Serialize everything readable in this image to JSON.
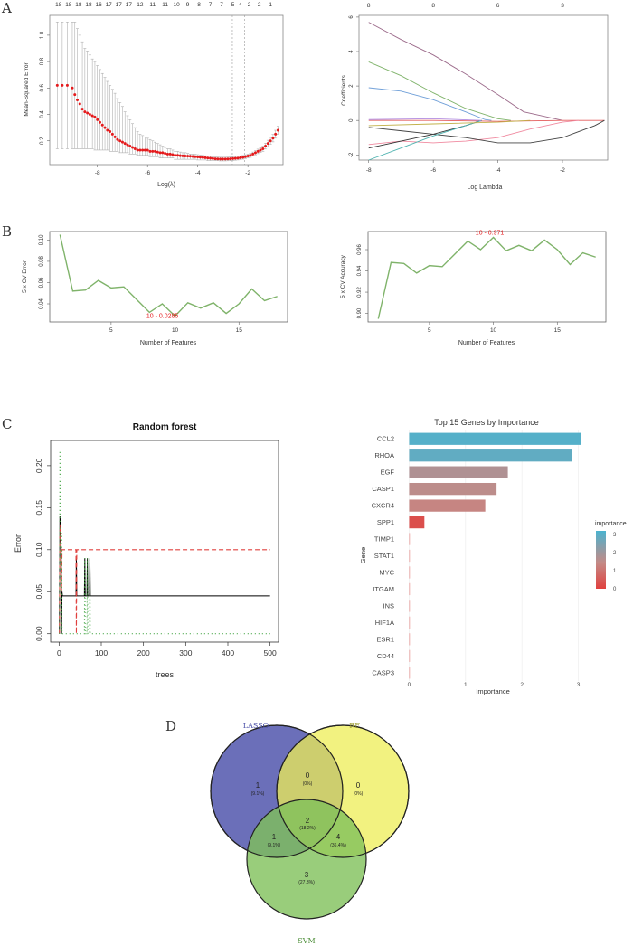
{
  "panel_labels": [
    "A",
    "B",
    "C",
    "D"
  ],
  "colors": {
    "lasso_red": "#e41a1c",
    "cv_green": "#7fb36a",
    "rf_red": "#e0413f",
    "rf_green": "#3fa33f",
    "venn_lasso": "#5b5fb1",
    "venn_rf": "#eeee55",
    "venn_svm": "#7fc05a",
    "imp_high": "#4bb3cf",
    "imp_mid": "#c48a86",
    "imp_low": "#e0413f"
  },
  "chart_data": [
    {
      "id": "lasso_cv",
      "type": "scatter",
      "xlabel": "Log(λ)",
      "ylabel": "Mean-Squared Error",
      "xlim": [
        -9.9,
        -0.6
      ],
      "ylim": [
        0.02,
        1.15
      ],
      "xticks": [
        -8,
        -6,
        -4,
        -2
      ],
      "yticks": [
        0.2,
        0.4,
        0.6,
        0.8,
        1.0
      ],
      "top_axis": {
        "positions": [
          -9.55,
          -9.15,
          -8.75,
          -8.35,
          -7.95,
          -7.55,
          -7.15,
          -6.75,
          -6.3,
          -5.8,
          -5.3,
          -4.85,
          -4.4,
          -3.95,
          -3.5,
          -3.05,
          -2.6,
          -2.3,
          -1.95,
          -1.55,
          -1.1
        ],
        "labels": [
          "18",
          "18",
          "18",
          "18",
          "16",
          "17",
          "17",
          "17",
          "12",
          "11",
          "11",
          "10",
          "9",
          "8",
          "7",
          "7",
          "5",
          "4",
          "2",
          "2",
          "1"
        ]
      },
      "vlines": [
        -2.62,
        -2.13
      ],
      "x": [
        -9.6,
        -9.4,
        -9.2,
        -9.0,
        -8.9,
        -8.8,
        -8.7,
        -8.6,
        -8.5,
        -8.4,
        -8.3,
        -8.2,
        -8.1,
        -8.0,
        -7.9,
        -7.8,
        -7.7,
        -7.6,
        -7.5,
        -7.4,
        -7.3,
        -7.2,
        -7.1,
        -7.0,
        -6.9,
        -6.8,
        -6.7,
        -6.6,
        -6.5,
        -6.4,
        -6.3,
        -6.2,
        -6.1,
        -6.0,
        -5.9,
        -5.8,
        -5.7,
        -5.6,
        -5.5,
        -5.4,
        -5.3,
        -5.2,
        -5.1,
        -5.0,
        -4.9,
        -4.8,
        -4.7,
        -4.6,
        -4.5,
        -4.4,
        -4.3,
        -4.2,
        -4.1,
        -4.0,
        -3.9,
        -3.8,
        -3.7,
        -3.6,
        -3.5,
        -3.4,
        -3.3,
        -3.2,
        -3.1,
        -3.0,
        -2.9,
        -2.8,
        -2.7,
        -2.6,
        -2.5,
        -2.4,
        -2.3,
        -2.2,
        -2.1,
        -2.0,
        -1.9,
        -1.8,
        -1.7,
        -1.6,
        -1.5,
        -1.4,
        -1.3,
        -1.2,
        -1.1,
        -1.0,
        -0.9,
        -0.8
      ],
      "y": [
        0.62,
        0.62,
        0.62,
        0.6,
        0.55,
        0.51,
        0.48,
        0.44,
        0.42,
        0.41,
        0.4,
        0.39,
        0.38,
        0.36,
        0.34,
        0.32,
        0.3,
        0.28,
        0.27,
        0.25,
        0.23,
        0.21,
        0.2,
        0.19,
        0.18,
        0.17,
        0.16,
        0.15,
        0.14,
        0.13,
        0.13,
        0.13,
        0.13,
        0.13,
        0.12,
        0.12,
        0.12,
        0.115,
        0.11,
        0.11,
        0.105,
        0.1,
        0.1,
        0.095,
        0.09,
        0.09,
        0.088,
        0.086,
        0.085,
        0.084,
        0.083,
        0.082,
        0.08,
        0.078,
        0.076,
        0.074,
        0.072,
        0.07,
        0.068,
        0.066,
        0.064,
        0.063,
        0.062,
        0.062,
        0.062,
        0.063,
        0.064,
        0.065,
        0.067,
        0.069,
        0.072,
        0.075,
        0.08,
        0.085,
        0.09,
        0.1,
        0.11,
        0.12,
        0.13,
        0.14,
        0.16,
        0.18,
        0.2,
        0.22,
        0.25,
        0.28
      ],
      "upper": [
        1.1,
        1.1,
        1.1,
        1.1,
        1.1,
        1.05,
        1.0,
        0.95,
        0.9,
        0.88,
        0.85,
        0.82,
        0.8,
        0.77,
        0.74,
        0.71,
        0.68,
        0.65,
        0.62,
        0.59,
        0.56,
        0.52,
        0.49,
        0.46,
        0.42,
        0.39,
        0.36,
        0.33,
        0.3,
        0.27,
        0.25,
        0.24,
        0.23,
        0.22,
        0.21,
        0.2,
        0.19,
        0.18,
        0.17,
        0.16,
        0.15,
        0.14,
        0.14,
        0.13,
        0.12,
        0.12,
        0.115,
        0.11,
        0.11,
        0.105,
        0.1,
        0.1,
        0.098,
        0.095,
        0.092,
        0.09,
        0.087,
        0.085,
        0.082,
        0.08,
        0.078,
        0.077,
        0.076,
        0.076,
        0.076,
        0.077,
        0.078,
        0.079,
        0.081,
        0.083,
        0.086,
        0.089,
        0.094,
        0.099,
        0.105,
        0.115,
        0.126,
        0.137,
        0.148,
        0.16,
        0.182,
        0.204,
        0.226,
        0.248,
        0.28,
        0.31
      ],
      "lower": [
        0.14,
        0.14,
        0.14,
        0.14,
        0.14,
        0.14,
        0.14,
        0.14,
        0.14,
        0.14,
        0.14,
        0.14,
        0.13,
        0.13,
        0.13,
        0.13,
        0.13,
        0.13,
        0.12,
        0.12,
        0.12,
        0.12,
        0.11,
        0.11,
        0.11,
        0.11,
        0.1,
        0.1,
        0.1,
        0.09,
        0.09,
        0.09,
        0.09,
        0.09,
        0.08,
        0.08,
        0.08,
        0.08,
        0.07,
        0.07,
        0.07,
        0.07,
        0.07,
        0.07,
        0.06,
        0.06,
        0.06,
        0.06,
        0.06,
        0.06,
        0.06,
        0.06,
        0.06,
        0.055,
        0.055,
        0.055,
        0.055,
        0.05,
        0.05,
        0.05,
        0.05,
        0.05,
        0.048,
        0.048,
        0.048,
        0.049,
        0.05,
        0.051,
        0.053,
        0.055,
        0.058,
        0.061,
        0.066,
        0.071,
        0.075,
        0.085,
        0.094,
        0.103,
        0.112,
        0.12,
        0.138,
        0.156,
        0.174,
        0.192,
        0.22,
        0.25
      ]
    },
    {
      "id": "lasso_coef",
      "type": "line",
      "xlabel": "Log Lambda",
      "ylabel": "Coefficients",
      "xlim": [
        -8.3,
        -0.6
      ],
      "ylim": [
        -2.3,
        6.1
      ],
      "xticks": [
        -8,
        -6,
        -4,
        -2
      ],
      "yticks": [
        -2,
        0,
        2,
        4,
        6
      ],
      "top_axis": {
        "positions": [
          -8,
          -6,
          -4,
          -2
        ],
        "labels": [
          "8",
          "8",
          "6",
          "3"
        ]
      },
      "series": [
        {
          "color": "#9c6b8b",
          "points": [
            [
              -8,
              5.7
            ],
            [
              -7,
              4.7
            ],
            [
              -6,
              3.8
            ],
            [
              -5,
              2.7
            ],
            [
              -4,
              1.5
            ],
            [
              -3.2,
              0.5
            ],
            [
              -2,
              0
            ]
          ]
        },
        {
          "color": "#7fb36a",
          "points": [
            [
              -8,
              3.4
            ],
            [
              -7,
              2.6
            ],
            [
              -6,
              1.6
            ],
            [
              -5,
              0.7
            ],
            [
              -4,
              0.1
            ],
            [
              -3.6,
              0
            ]
          ]
        },
        {
          "color": "#6f9fd8",
          "points": [
            [
              -8,
              1.9
            ],
            [
              -7,
              1.7
            ],
            [
              -6,
              1.2
            ],
            [
              -5,
              0.5
            ],
            [
              -4.4,
              0.05
            ],
            [
              -4.2,
              0
            ]
          ]
        },
        {
          "color": "#e45c5c",
          "points": [
            [
              -8,
              0
            ],
            [
              -6,
              0
            ],
            [
              -4,
              -0.05
            ],
            [
              -2,
              0
            ],
            [
              -0.7,
              0
            ]
          ]
        },
        {
          "color": "#f08aa0",
          "points": [
            [
              -8,
              -1.4
            ],
            [
              -7,
              -1.2
            ],
            [
              -6,
              -1.3
            ],
            [
              -5,
              -1.2
            ],
            [
              -4,
              -1
            ],
            [
              -3,
              -0.5
            ],
            [
              -2,
              -0.1
            ],
            [
              -1.5,
              0
            ]
          ]
        },
        {
          "color": "#333333",
          "points": [
            [
              -8,
              -1.6
            ],
            [
              -7,
              -1.2
            ],
            [
              -6,
              -0.8
            ],
            [
              -5,
              -0.3
            ],
            [
              -4.5,
              0
            ]
          ]
        },
        {
          "color": "#444444",
          "points": [
            [
              -8,
              -0.4
            ],
            [
              -7,
              -0.6
            ],
            [
              -6,
              -0.8
            ],
            [
              -5,
              -1
            ],
            [
              -4,
              -1.3
            ],
            [
              -3,
              -1.3
            ],
            [
              -2,
              -1
            ],
            [
              -1,
              -0.3
            ],
            [
              -0.7,
              0
            ]
          ]
        },
        {
          "color": "#4fb3b0",
          "points": [
            [
              -8,
              -2.3
            ],
            [
              -7,
              -1.6
            ],
            [
              -6,
              -0.9
            ],
            [
              -5,
              -0.3
            ],
            [
              -4.5,
              0
            ]
          ]
        },
        {
          "color": "#c2b14a",
          "points": [
            [
              -8,
              -0.3
            ],
            [
              -6,
              -0.2
            ],
            [
              -4,
              -0.1
            ],
            [
              -3,
              0
            ]
          ]
        },
        {
          "color": "#b38de0",
          "points": [
            [
              -8,
              0.05
            ],
            [
              -6,
              0.1
            ],
            [
              -4.5,
              0
            ]
          ]
        }
      ]
    },
    {
      "id": "svm_error",
      "type": "line",
      "xlabel": "Number of Features",
      "ylabel": "5 x CV Error",
      "xlim": [
        0.2,
        18.8
      ],
      "ylim": [
        0.023,
        0.108
      ],
      "xticks": [
        5,
        10,
        15
      ],
      "yticks": [
        0.04,
        0.06,
        0.08,
        0.1
      ],
      "annotation": {
        "text": "10 - 0.0285",
        "x": 10,
        "y": 0.0285
      },
      "x": [
        1,
        2,
        3,
        4,
        5,
        6,
        7,
        8,
        9,
        10,
        11,
        12,
        13,
        14,
        15,
        16,
        17,
        18
      ],
      "values": [
        0.105,
        0.052,
        0.053,
        0.062,
        0.055,
        0.056,
        0.044,
        0.032,
        0.04,
        0.0285,
        0.041,
        0.036,
        0.041,
        0.031,
        0.04,
        0.054,
        0.043,
        0.047
      ]
    },
    {
      "id": "svm_accuracy",
      "type": "line",
      "xlabel": "Number of Features",
      "ylabel": "5 x CV Accuracy",
      "xlim": [
        0.2,
        18.8
      ],
      "ylim": [
        0.892,
        0.977
      ],
      "xticks": [
        5,
        10,
        15
      ],
      "yticks": [
        0.9,
        0.92,
        0.94,
        0.96
      ],
      "annotation": {
        "text": "10 - 0.971",
        "x": 10,
        "y": 0.9715
      },
      "x": [
        1,
        2,
        3,
        4,
        5,
        6,
        7,
        8,
        9,
        10,
        11,
        12,
        13,
        14,
        15,
        16,
        17,
        18
      ],
      "values": [
        0.895,
        0.948,
        0.947,
        0.938,
        0.945,
        0.944,
        0.956,
        0.968,
        0.96,
        0.9715,
        0.959,
        0.964,
        0.959,
        0.969,
        0.96,
        0.946,
        0.957,
        0.953
      ]
    },
    {
      "id": "rf_error",
      "type": "line",
      "title": "Random forest",
      "xlabel": "trees",
      "ylabel": "Error",
      "xlim": [
        -20,
        520
      ],
      "ylim": [
        -0.01,
        0.23
      ],
      "xticks": [
        0,
        100,
        200,
        300,
        400,
        500
      ],
      "yticks": [
        0.0,
        0.05,
        0.1,
        0.15,
        0.2
      ],
      "series": [
        {
          "color": "#000000",
          "dash": "",
          "points": [
            [
              1,
              0.0
            ],
            [
              2,
              0.14
            ],
            [
              3,
              0.13
            ],
            [
              4,
              0.12
            ],
            [
              5,
              0.1
            ],
            [
              6,
              0.0
            ],
            [
              7,
              0.05
            ],
            [
              8,
              0.045
            ],
            [
              40,
              0.045
            ],
            [
              41,
              0.09
            ],
            [
              42,
              0.045
            ],
            [
              60,
              0.045
            ],
            [
              61,
              0.09
            ],
            [
              62,
              0.045
            ],
            [
              66,
              0.045
            ],
            [
              67,
              0.09
            ],
            [
              68,
              0.045
            ],
            [
              72,
              0.045
            ],
            [
              73,
              0.09
            ],
            [
              74,
              0.045
            ],
            [
              500,
              0.045
            ]
          ]
        },
        {
          "color": "#e0413f",
          "dash": "5,3",
          "points": [
            [
              1,
              0.0
            ],
            [
              2,
              0.12
            ],
            [
              3,
              0.13
            ],
            [
              4,
              0.11
            ],
            [
              5,
              0.1
            ],
            [
              6,
              0.05
            ],
            [
              7,
              0.1
            ],
            [
              8,
              0.1
            ],
            [
              40,
              0.1
            ],
            [
              41,
              0.0
            ],
            [
              42,
              0.1
            ],
            [
              500,
              0.1
            ]
          ]
        },
        {
          "color": "#3fa33f",
          "dash": "1,3",
          "points": [
            [
              1,
              0.0
            ],
            [
              2,
              0.22
            ],
            [
              3,
              0.15
            ],
            [
              4,
              0.1
            ],
            [
              5,
              0.0
            ],
            [
              6,
              0.12
            ],
            [
              7,
              0.0
            ],
            [
              60,
              0.0
            ],
            [
              61,
              0.09
            ],
            [
              62,
              0.0
            ],
            [
              66,
              0.0
            ],
            [
              67,
              0.09
            ],
            [
              68,
              0.0
            ],
            [
              72,
              0.0
            ],
            [
              73,
              0.09
            ],
            [
              74,
              0.0
            ],
            [
              500,
              0.0
            ]
          ]
        }
      ]
    },
    {
      "id": "rf_importance",
      "type": "bar",
      "title": "Top 15 Genes by Importance",
      "xlabel": "Importance",
      "ylabel": "Gene",
      "xlim": [
        -0.2,
        3.2
      ],
      "xticks": [
        0,
        1,
        2,
        3
      ],
      "categories": [
        "CCL2",
        "RHOA",
        "EGF",
        "CASP1",
        "CXCR4",
        "SPP1",
        "TIMP1",
        "STAT1",
        "MYC",
        "ITGAM",
        "INS",
        "HIF1A",
        "ESR1",
        "CD44",
        "CASP3"
      ],
      "values": [
        3.05,
        2.88,
        1.75,
        1.55,
        1.35,
        0.27,
        0,
        0,
        0,
        0,
        0,
        0,
        0,
        0,
        0
      ],
      "legend": {
        "title": "importance",
        "ticks": [
          0,
          1,
          2,
          3
        ],
        "range": [
          0,
          3.2
        ]
      }
    },
    {
      "id": "venn",
      "type": "venn",
      "sets": [
        "LASSO",
        "RF",
        "SVM"
      ],
      "regions": [
        {
          "count": "1",
          "pct": "(9.1%)"
        },
        {
          "count": "0",
          "pct": "(0%)"
        },
        {
          "count": "0",
          "pct": "(0%)"
        },
        {
          "count": "2",
          "pct": "(18.2%)"
        },
        {
          "count": "1",
          "pct": "(9.1%)"
        },
        {
          "count": "4",
          "pct": "(36.4%)"
        },
        {
          "count": "3",
          "pct": "(27.3%)"
        }
      ]
    }
  ]
}
